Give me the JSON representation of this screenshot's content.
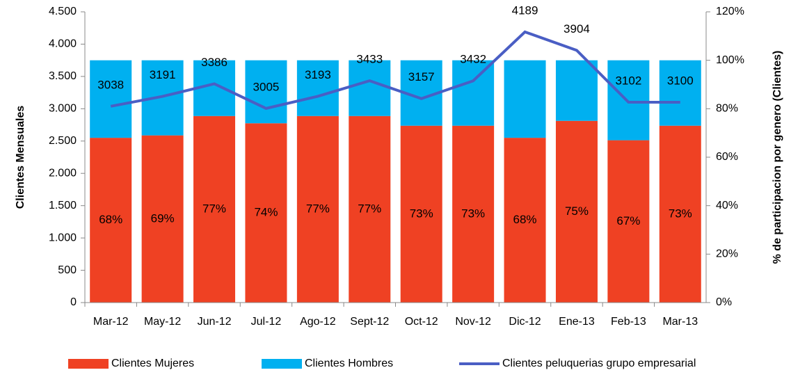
{
  "chart_data": {
    "type": "bar",
    "stacked": true,
    "ylabel": "Clientes Mensuales",
    "y2label": "% de participacion por genero (Clientes)",
    "categories": [
      "Mar-12",
      "May-12",
      "Jun-12",
      "Jul-12",
      "Ago-12",
      "Sept-12",
      "Oct-12",
      "Nov-12",
      "Dic-12",
      "Ene-13",
      "Feb-13",
      "Mar-13"
    ],
    "series": [
      {
        "name": "Clientes Mujeres",
        "type": "bar",
        "axis": "y2",
        "color": "#ef4123",
        "values": [
          68,
          69,
          77,
          74,
          77,
          77,
          73,
          73,
          68,
          75,
          67,
          73
        ],
        "value_labels": [
          "68%",
          "69%",
          "77%",
          "74%",
          "77%",
          "77%",
          "73%",
          "73%",
          "68%",
          "75%",
          "67%",
          "73%"
        ]
      },
      {
        "name": "Clientes Hombres",
        "type": "bar",
        "axis": "y2",
        "color": "#00b0f0",
        "values": [
          32,
          31,
          23,
          26,
          23,
          23,
          27,
          27,
          32,
          25,
          33,
          27
        ]
      },
      {
        "name": "Clientes peluquerias grupo empresarial",
        "type": "line",
        "axis": "y",
        "color": "#4a5ec4",
        "values": [
          3038,
          3191,
          3386,
          3005,
          3193,
          3433,
          3157,
          3432,
          4189,
          3904,
          3102,
          3100
        ]
      }
    ],
    "ylim": [
      0,
      4500
    ],
    "yticks": [
      0,
      500,
      {
        "value": 1000,
        "label": "1.000"
      },
      {
        "value": 1500,
        "label": "1.500"
      },
      {
        "value": 2000,
        "label": "2.000"
      },
      {
        "value": 2500,
        "label": "2.500"
      },
      {
        "value": 3000,
        "label": "3.000"
      },
      {
        "value": 3500,
        "label": "3.500"
      },
      {
        "value": 4000,
        "label": "4.000"
      },
      {
        "value": 4500,
        "label": "4.500"
      }
    ],
    "y2lim": [
      0,
      120
    ],
    "y2ticks": [
      {
        "value": 0,
        "label": "0%"
      },
      {
        "value": 20,
        "label": "20%"
      },
      {
        "value": 40,
        "label": "40%"
      },
      {
        "value": 60,
        "label": "60%"
      },
      {
        "value": 80,
        "label": "80%"
      },
      {
        "value": 100,
        "label": "100%"
      },
      {
        "value": 120,
        "label": "120%"
      }
    ]
  }
}
